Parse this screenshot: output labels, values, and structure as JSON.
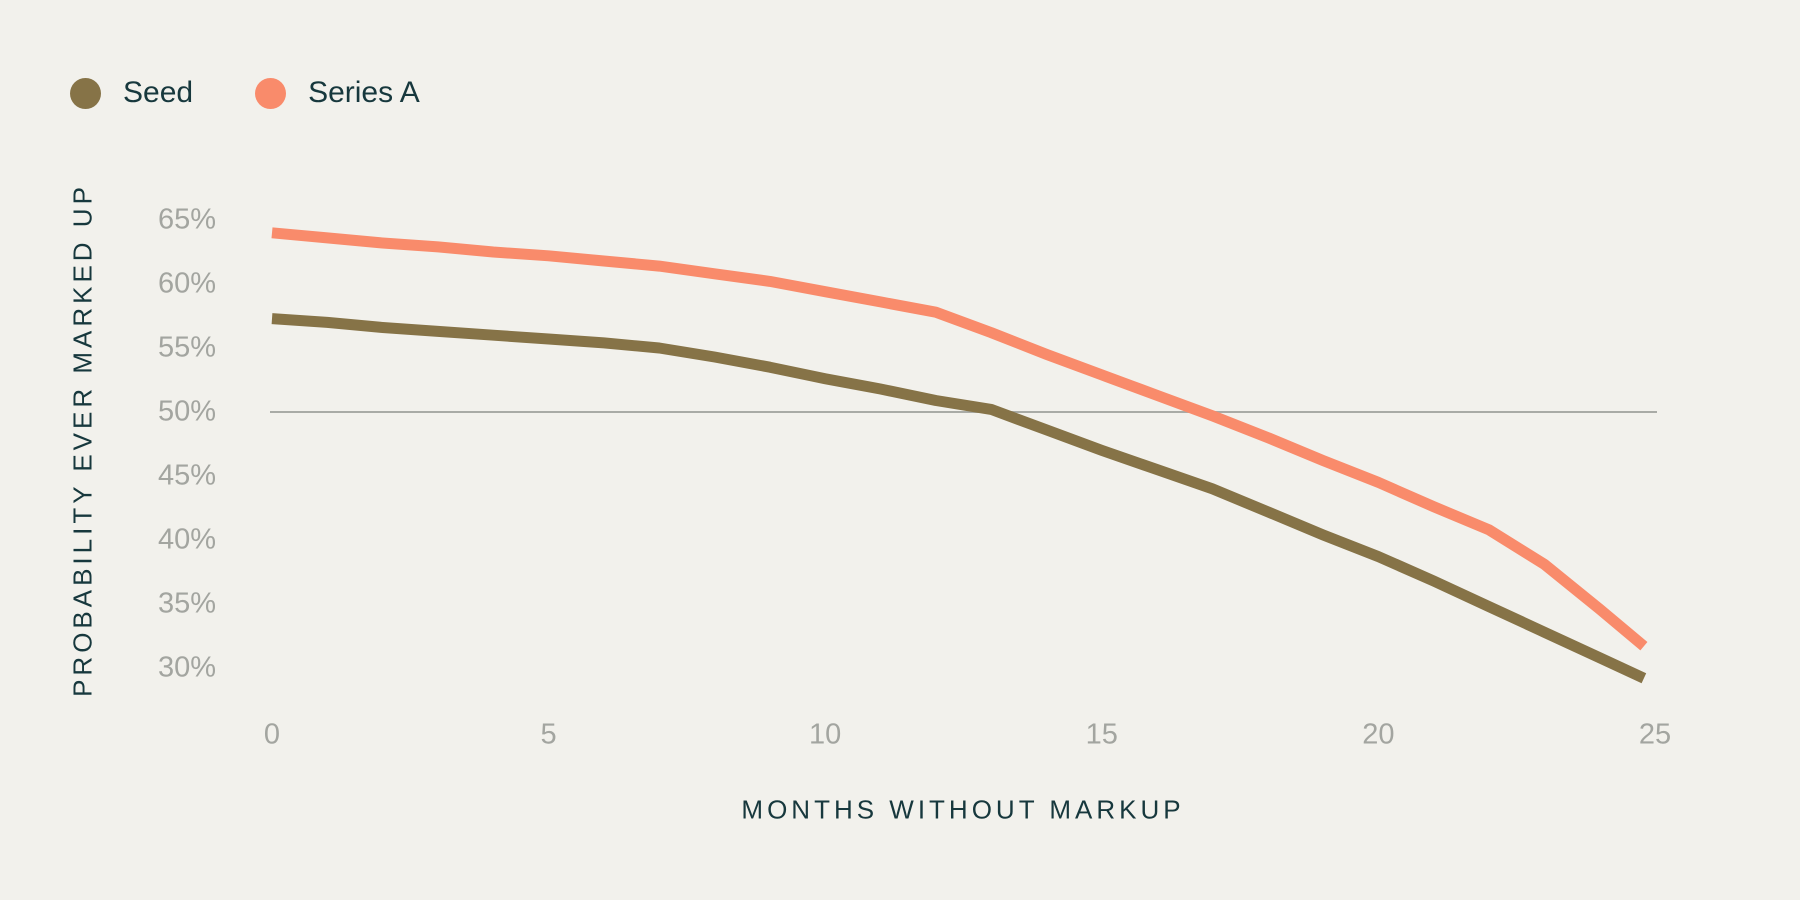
{
  "page": {
    "background_color": "#F2F1EC"
  },
  "legend": {
    "position": "top-left",
    "items": [
      {
        "label": "Seed",
        "color": "#867347"
      },
      {
        "label": "Series A",
        "color": "#F98B6B"
      }
    ]
  },
  "chart_data": {
    "type": "line",
    "title": "",
    "xlabel": "MONTHS WITHOUT MARKUP",
    "ylabel": "PROBABILITY EVER MARKED UP",
    "xlim": [
      0,
      25
    ],
    "ylim_percent": [
      28,
      67
    ],
    "x_ticks": [
      "0",
      "5",
      "10",
      "15",
      "20",
      "25"
    ],
    "x_tick_values": [
      0,
      5,
      10,
      15,
      20,
      25
    ],
    "y_ticks": [
      "65%",
      "60%",
      "55%",
      "50%",
      "45%",
      "40%",
      "35%",
      "30%"
    ],
    "y_tick_values": [
      65,
      60,
      55,
      50,
      45,
      40,
      35,
      30
    ],
    "grid": "single horizontal reference line at 50% only",
    "reference_line": {
      "value": 50,
      "color": "#A9ABA6"
    },
    "legend_position": "top-left",
    "x": [
      0,
      1,
      2,
      3,
      4,
      5,
      6,
      7,
      8,
      9,
      10,
      11,
      12,
      13,
      14,
      15,
      16,
      17,
      18,
      19,
      20,
      21,
      22,
      23,
      24,
      24.8
    ],
    "series": [
      {
        "name": "Seed",
        "color": "#867347",
        "unit": "%",
        "values": [
          57.3,
          57.0,
          56.6,
          56.3,
          56.0,
          55.7,
          55.4,
          55.0,
          54.3,
          53.5,
          52.6,
          51.8,
          50.9,
          50.2,
          48.6,
          47.0,
          45.5,
          44.0,
          42.2,
          40.4,
          38.7,
          36.8,
          34.8,
          32.8,
          30.8,
          29.2
        ]
      },
      {
        "name": "Series A",
        "color": "#F98B6B",
        "unit": "%",
        "values": [
          64.0,
          63.6,
          63.2,
          62.9,
          62.5,
          62.2,
          61.8,
          61.4,
          60.8,
          60.2,
          59.4,
          58.6,
          57.8,
          56.2,
          54.5,
          52.9,
          51.3,
          49.7,
          48.0,
          46.2,
          44.5,
          42.6,
          40.8,
          38.1,
          34.6,
          31.7
        ]
      }
    ]
  }
}
